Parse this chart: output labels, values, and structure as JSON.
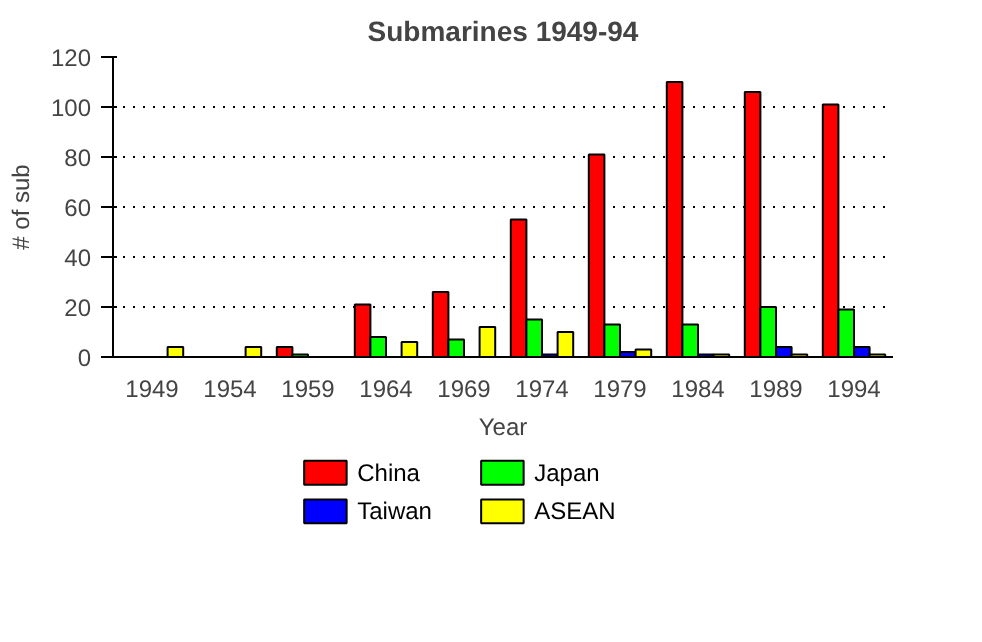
{
  "chart_data": {
    "type": "bar",
    "title": "Submarines 1949-94",
    "xlabel": "Year",
    "ylabel": "# of sub",
    "categories": [
      "1949",
      "1954",
      "1959",
      "1964",
      "1969",
      "1974",
      "1979",
      "1984",
      "1989",
      "1994"
    ],
    "series": [
      {
        "name": "China",
        "color": "#ff0000",
        "values": [
          0,
          0,
          4,
          21,
          26,
          55,
          81,
          110,
          106,
          101
        ]
      },
      {
        "name": "Japan",
        "color": "#00ff00",
        "values": [
          0,
          0,
          1,
          8,
          7,
          15,
          13,
          13,
          20,
          19
        ]
      },
      {
        "name": "Taiwan",
        "color": "#0000ff",
        "values": [
          0,
          0,
          0,
          0,
          0,
          1,
          2,
          1,
          4,
          4
        ]
      },
      {
        "name": "ASEAN",
        "color": "#ffff00",
        "values": [
          4,
          4,
          0,
          6,
          12,
          10,
          3,
          1,
          1,
          1
        ]
      }
    ],
    "ylim": [
      0,
      120
    ],
    "yticks": [
      0,
      20,
      40,
      60,
      80,
      100,
      120
    ],
    "grid": "y",
    "legend": "bottom"
  }
}
